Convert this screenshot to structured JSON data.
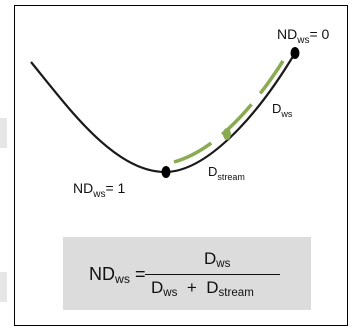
{
  "labels": {
    "top_right": {
      "main": "ND",
      "sub": "ws",
      "tail": "= 0"
    },
    "bottom_left": {
      "main": "ND",
      "sub": "ws",
      "tail": "= 1"
    },
    "d_ws": {
      "main": "D",
      "sub": "ws"
    },
    "d_stream": {
      "main": "D",
      "sub": "stream"
    }
  },
  "formula": {
    "lhs_main": "ND",
    "lhs_sub": "ws",
    "equals": "=",
    "num_main": "D",
    "num_sub": "ws",
    "den1_main": "D",
    "den1_sub": "ws",
    "plus": "+",
    "den2_main": "D",
    "den2_sub": "stream"
  },
  "colors": {
    "curve": "#1a1a1a",
    "dashed_accent": "#8aab52",
    "midpoint_dot": "#8aab52",
    "endpoint_dot": "#000000",
    "formula_background": "#dcdcdc"
  }
}
